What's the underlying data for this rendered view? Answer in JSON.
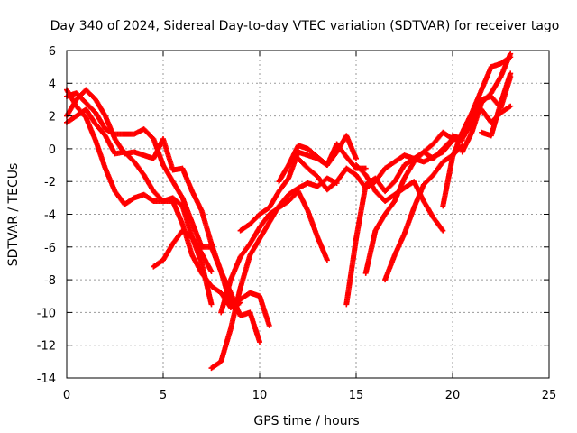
{
  "chart_data": {
    "type": "scatter",
    "title": "Day 340 of 2024, Sidereal Day-to-day VTEC variation (SDTVAR) for receiver tago",
    "xlabel": "GPS time / hours",
    "ylabel": "SDTVAR / TECUs",
    "xlim": [
      0,
      25
    ],
    "ylim": [
      -14,
      6
    ],
    "xticks": [
      0,
      5,
      10,
      15,
      20,
      25
    ],
    "yticks": [
      -14,
      -12,
      -10,
      -8,
      -6,
      -4,
      -2,
      0,
      2,
      4,
      6
    ],
    "grid": true,
    "grid_style": "dotted",
    "marker": "+",
    "marker_color": "#ff0000",
    "series": [
      {
        "x": [
          0.0,
          0.5,
          1.0,
          1.5,
          2.0,
          2.5,
          3.0,
          3.5,
          4.0,
          4.5,
          5.0,
          5.5,
          6.0,
          6.5,
          7.0,
          7.5,
          8.0,
          8.5,
          9.0,
          9.5,
          10.0
        ],
        "y": [
          3.2,
          3.4,
          2.8,
          2.2,
          1.2,
          0.9,
          0.9,
          0.9,
          1.2,
          0.6,
          -1.0,
          -2.0,
          -3.0,
          -4.5,
          -6.0,
          -6.0,
          -7.5,
          -8.8,
          -10.2,
          -10.0,
          -11.8
        ]
      },
      {
        "x": [
          0.0,
          0.5,
          1.0,
          1.5,
          2.0,
          2.5,
          3.0,
          3.5,
          4.0,
          4.5,
          5.0,
          5.5,
          6.0,
          6.5,
          7.0,
          7.5,
          8.0,
          8.5,
          9.0,
          9.5,
          10.0,
          10.5
        ],
        "y": [
          2.0,
          3.0,
          3.6,
          3.0,
          2.0,
          0.6,
          -0.3,
          -0.2,
          -0.4,
          -0.6,
          0.6,
          -1.3,
          -1.2,
          -2.6,
          -3.8,
          -5.8,
          -7.5,
          -9.5,
          -9.2,
          -8.8,
          -9.0,
          -10.8
        ]
      },
      {
        "x": [
          0.0,
          0.5,
          1.0,
          1.5,
          2.0,
          2.5,
          3.0,
          3.5,
          4.0,
          4.5,
          5.0,
          5.5,
          6.0,
          6.5,
          7.0,
          7.5,
          8.0,
          8.5,
          9.0
        ],
        "y": [
          1.6,
          2.0,
          2.4,
          1.5,
          0.8,
          -0.3,
          -0.2,
          -0.8,
          -1.6,
          -2.6,
          -3.2,
          -3.2,
          -4.6,
          -6.5,
          -7.6,
          -8.4,
          -8.8,
          -9.7,
          -9.4
        ]
      },
      {
        "x": [
          0.0,
          0.5,
          1.0,
          1.5,
          2.0,
          2.5,
          3.0,
          3.5,
          4.0,
          4.5,
          5.0,
          5.5,
          6.0,
          6.5,
          7.0,
          7.5
        ],
        "y": [
          3.6,
          2.6,
          1.9,
          0.5,
          -1.2,
          -2.6,
          -3.4,
          -3.0,
          -2.8,
          -3.2,
          -3.2,
          -3.0,
          -3.5,
          -5.4,
          -7.0,
          -9.5
        ]
      },
      {
        "x": [
          4.5,
          5.0,
          5.5,
          6.0,
          6.5,
          7.0,
          7.5
        ],
        "y": [
          -7.2,
          -6.8,
          -5.8,
          -5.0,
          -5.4,
          -6.4,
          -7.5
        ]
      },
      {
        "x": [
          7.5,
          8.0,
          8.5,
          9.0,
          9.5,
          10.0,
          10.5,
          11.0,
          11.5,
          12.0,
          12.5,
          13.0,
          13.5,
          14.0
        ],
        "y": [
          -13.4,
          -13.0,
          -11.0,
          -8.5,
          -6.5,
          -5.5,
          -4.5,
          -3.5,
          -2.8,
          -2.4,
          -2.1,
          -2.3,
          -1.8,
          -2.1
        ]
      },
      {
        "x": [
          8.0,
          8.5,
          9.0,
          9.5,
          10.0,
          10.5,
          11.0,
          11.5,
          12.0,
          12.5,
          13.0,
          13.5
        ],
        "y": [
          -10.0,
          -8.0,
          -6.6,
          -5.8,
          -4.8,
          -4.0,
          -3.6,
          -3.2,
          -2.6,
          -3.8,
          -5.4,
          -6.8
        ]
      },
      {
        "x": [
          9.0,
          9.5,
          10.0,
          10.5,
          11.0,
          11.5,
          12.0,
          12.5,
          13.0,
          13.5,
          14.0,
          14.5,
          15.0
        ],
        "y": [
          -5.0,
          -4.6,
          -4.0,
          -3.6,
          -2.6,
          -1.8,
          -0.2,
          -0.4,
          -0.6,
          -1.0,
          -0.2,
          0.8,
          -0.6
        ]
      },
      {
        "x": [
          11.0,
          11.5,
          12.0,
          12.5,
          13.0,
          13.5,
          14.0,
          14.5,
          15.0,
          15.5
        ],
        "y": [
          -2.0,
          -1.0,
          0.2,
          0.0,
          -0.5,
          -1.0,
          0.3,
          -0.5,
          -1.2,
          -1.2
        ]
      },
      {
        "x": [
          12.0,
          12.5,
          13.0,
          13.5,
          14.0,
          14.5,
          15.0,
          15.5,
          16.0,
          16.5,
          17.0,
          17.5,
          18.0,
          18.5,
          19.0,
          19.5,
          20.0
        ],
        "y": [
          -0.6,
          -1.2,
          -1.7,
          -2.5,
          -2.0,
          -1.2,
          -1.6,
          -2.4,
          -2.0,
          -1.2,
          -0.8,
          -0.4,
          -0.6,
          -0.8,
          -0.5,
          -0.2,
          0.5
        ]
      },
      {
        "x": [
          14.5,
          15.0,
          15.5,
          16.0,
          16.5,
          17.0,
          17.5,
          18.0,
          18.5,
          19.0,
          19.5,
          20.0,
          20.5
        ],
        "y": [
          -9.5,
          -5.5,
          -2.2,
          -1.8,
          -2.6,
          -2.0,
          -1.0,
          -0.6,
          -0.2,
          -0.6,
          0.0,
          0.6,
          0.5
        ]
      },
      {
        "x": [
          15.0,
          15.5,
          16.0,
          16.5,
          17.0,
          17.5,
          18.0,
          18.5,
          19.0,
          19.5
        ],
        "y": [
          -1.0,
          -1.6,
          -2.6,
          -3.2,
          -2.8,
          -2.4,
          -2.0,
          -3.2,
          -4.2,
          -5.0
        ]
      },
      {
        "x": [
          15.5,
          16.0,
          16.5,
          17.0,
          17.5,
          18.0,
          18.5,
          19.0,
          19.5,
          20.0,
          20.5
        ],
        "y": [
          -7.6,
          -5.0,
          -4.0,
          -3.2,
          -1.8,
          -0.8,
          -0.2,
          0.3,
          1.0,
          0.6,
          0.6
        ]
      },
      {
        "x": [
          16.5,
          17.0,
          17.5,
          18.0,
          18.5,
          19.0,
          19.5,
          20.0,
          20.5
        ],
        "y": [
          -8.0,
          -6.5,
          -5.2,
          -3.6,
          -2.2,
          -1.6,
          -0.8,
          -0.4,
          0.2
        ]
      },
      {
        "x": [
          19.5,
          20.0,
          20.5,
          21.0,
          21.5,
          22.0,
          22.5,
          23.0
        ],
        "y": [
          -3.5,
          -0.5,
          1.0,
          2.2,
          3.6,
          5.0,
          5.2,
          5.6
        ]
      },
      {
        "x": [
          20.0,
          20.5,
          21.0,
          21.5,
          22.0,
          22.5,
          23.0
        ],
        "y": [
          0.8,
          0.6,
          1.6,
          3.0,
          3.2,
          2.5,
          4.4
        ]
      },
      {
        "x": [
          20.5,
          21.0,
          21.5,
          22.0,
          22.5,
          23.0
        ],
        "y": [
          -0.2,
          1.0,
          2.8,
          3.4,
          4.4,
          5.8
        ]
      },
      {
        "x": [
          21.0,
          21.5,
          22.0,
          22.5,
          23.0
        ],
        "y": [
          1.8,
          2.4,
          1.6,
          2.2,
          2.6
        ]
      },
      {
        "x": [
          21.5,
          22.0,
          22.5,
          23.0
        ],
        "y": [
          1.0,
          0.8,
          2.8,
          4.6
        ]
      }
    ]
  }
}
